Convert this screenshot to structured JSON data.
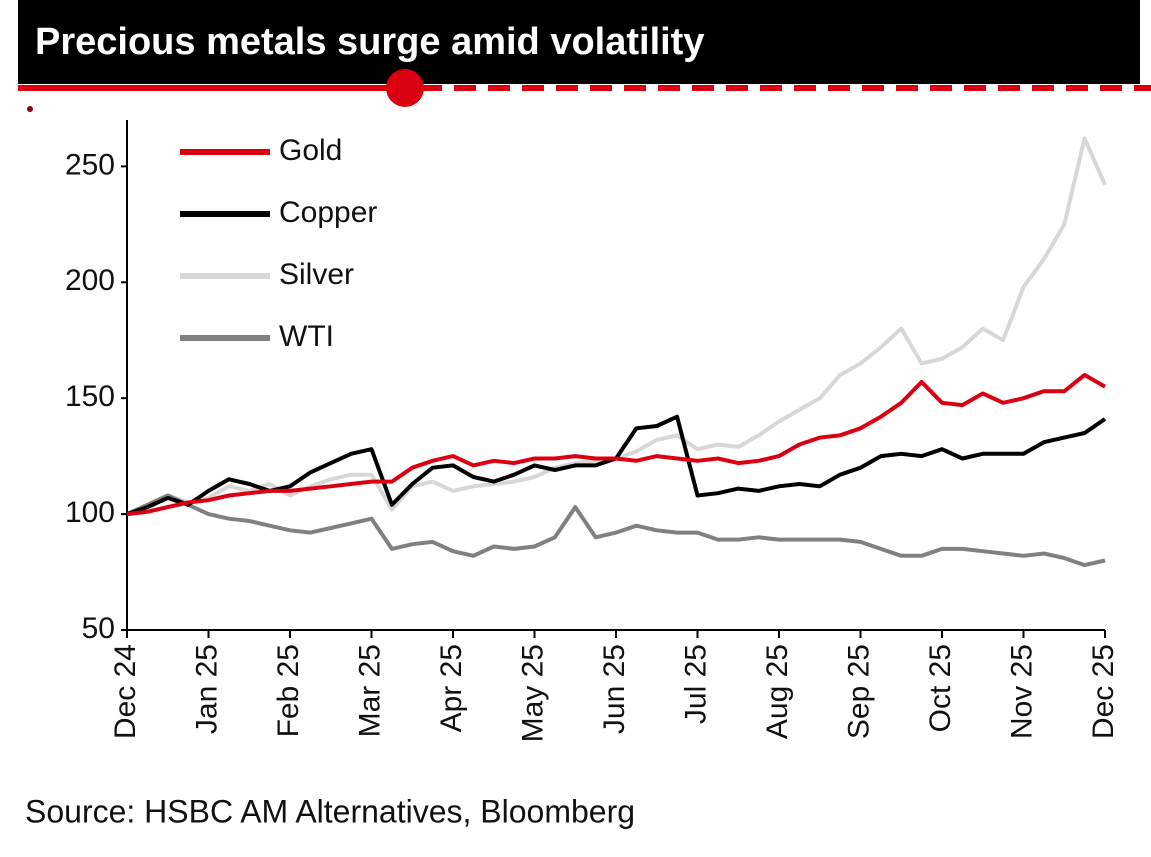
{
  "chart_data": {
    "type": "line",
    "title": "Precious metals surge amid volatility",
    "source": "Source: HSBC AM Alternatives, Bloomberg",
    "categories": [
      "Dec 24",
      null,
      null,
      null,
      "Jan 25",
      null,
      null,
      null,
      "Feb 25",
      null,
      null,
      null,
      "Mar 25",
      null,
      null,
      null,
      "Apr 25",
      null,
      null,
      null,
      "May 25",
      null,
      null,
      null,
      "Jun 25",
      null,
      null,
      null,
      "Jul 25",
      null,
      null,
      null,
      "Aug 25",
      null,
      null,
      null,
      "Sep 25",
      null,
      null,
      null,
      "Oct 25",
      null,
      null,
      null,
      "Nov 25",
      null,
      null,
      null,
      "Dec 25"
    ],
    "series": [
      {
        "name": "Gold",
        "color": "#db0011",
        "values": [
          100,
          101,
          103,
          105,
          106,
          108,
          109,
          110,
          110,
          111,
          112,
          113,
          114,
          114,
          120,
          123,
          125,
          121,
          123,
          122,
          124,
          124,
          125,
          124,
          124,
          123,
          125,
          124,
          123,
          124,
          122,
          123,
          125,
          130,
          133,
          134,
          137,
          142,
          148,
          157,
          148,
          147,
          152,
          148,
          150,
          153,
          153,
          160,
          155
        ]
      },
      {
        "name": "Copper",
        "color": "#000000",
        "values": [
          100,
          103,
          107,
          104,
          110,
          115,
          113,
          110,
          112,
          118,
          122,
          126,
          128,
          104,
          113,
          120,
          121,
          116,
          114,
          117,
          121,
          119,
          121,
          121,
          124,
          137,
          138,
          142,
          108,
          109,
          111,
          110,
          112,
          113,
          112,
          117,
          120,
          125,
          126,
          125,
          128,
          124,
          126,
          126,
          126,
          131,
          133,
          135,
          141
        ]
      },
      {
        "name": "Silver",
        "color": "#d7d7d7",
        "values": [
          100,
          102,
          108,
          105,
          107,
          112,
          110,
          113,
          108,
          112,
          115,
          117,
          117,
          102,
          112,
          114,
          110,
          112,
          113,
          114,
          116,
          120,
          122,
          123,
          124,
          127,
          132,
          134,
          128,
          130,
          129,
          134,
          140,
          145,
          150,
          160,
          165,
          172,
          180,
          165,
          167,
          172,
          180,
          175,
          198,
          210,
          225,
          262,
          242
        ]
      },
      {
        "name": "WTI",
        "color": "#808080",
        "values": [
          100,
          104,
          108,
          104,
          100,
          98,
          97,
          95,
          93,
          92,
          94,
          96,
          98,
          85,
          87,
          88,
          84,
          82,
          86,
          85,
          86,
          90,
          103,
          90,
          92,
          95,
          93,
          92,
          92,
          89,
          89,
          90,
          89,
          89,
          89,
          89,
          88,
          85,
          82,
          82,
          85,
          85,
          84,
          83,
          82,
          83,
          81,
          78,
          80
        ]
      }
    ],
    "ylim": [
      50,
      270
    ],
    "yticks": [
      50,
      100,
      150,
      200,
      250
    ],
    "grid": false,
    "legend": "upper left"
  }
}
